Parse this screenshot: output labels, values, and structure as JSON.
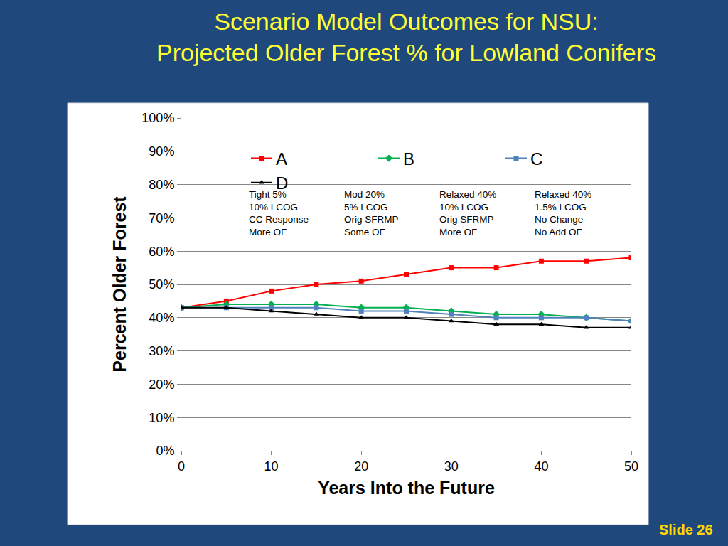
{
  "chart_data": {
    "type": "line",
    "title": [
      "Scenario Model Outcomes for NSU:",
      "Projected Older Forest % for Lowland Conifers"
    ],
    "x_label": "Years Into the Future",
    "y_label": "Percent Older Forest",
    "footer": "Slide 26",
    "x": [
      0,
      5,
      10,
      15,
      20,
      25,
      30,
      35,
      40,
      45,
      50
    ],
    "series": [
      {
        "name": "A",
        "color": "#FF0000",
        "marker": "square",
        "line_style": "solid",
        "notes": [
          "Tight 5%",
          "10% LCOG",
          "CC Response",
          "More OF"
        ],
        "values": [
          43,
          45,
          48,
          50,
          51,
          53,
          55,
          55,
          57,
          57,
          58
        ]
      },
      {
        "name": "B",
        "color": "#00B050",
        "marker": "diamond",
        "line_style": "solid",
        "notes": [
          "Mod 20%",
          "5% LCOG",
          "Orig SFRMP",
          "Some OF"
        ],
        "values": [
          43,
          44,
          44,
          44,
          43,
          43,
          42,
          41,
          41,
          40,
          39
        ]
      },
      {
        "name": "C",
        "color": "#4F81BD",
        "marker": "square",
        "line_style": "solid",
        "notes": [
          "Relaxed 40%",
          "10% LCOG",
          "Orig SFRMP",
          "More OF"
        ],
        "values": [
          43,
          43,
          43,
          43,
          42,
          42,
          41,
          40,
          40,
          40,
          39
        ]
      },
      {
        "name": "D",
        "color": "#000000",
        "marker": "triangle-up",
        "line_style": "solid",
        "notes": [
          "Relaxed 40%",
          "1.5% LCOG",
          "No Change",
          "No Add OF"
        ],
        "values": [
          43,
          43,
          42,
          41,
          40,
          40,
          39,
          38,
          38,
          37,
          37
        ]
      }
    ],
    "xlim": [
      0,
      50
    ],
    "xticks": [
      0,
      10,
      20,
      30,
      40,
      50
    ],
    "ylim": [
      0,
      100
    ],
    "yticks": [
      {
        "value": 0,
        "label": "0%"
      },
      {
        "value": 10,
        "label": "10%"
      },
      {
        "value": 20,
        "label": "20%"
      },
      {
        "value": 30,
        "label": "30%"
      },
      {
        "value": 40,
        "label": "40%"
      },
      {
        "value": 50,
        "label": "50%"
      },
      {
        "value": 60,
        "label": "60%"
      },
      {
        "value": 70,
        "label": "70%"
      },
      {
        "value": 80,
        "label": "80%"
      },
      {
        "value": 90,
        "label": "90%"
      },
      {
        "value": 100,
        "label": "100%"
      }
    ],
    "grid": true,
    "legend": "top"
  }
}
